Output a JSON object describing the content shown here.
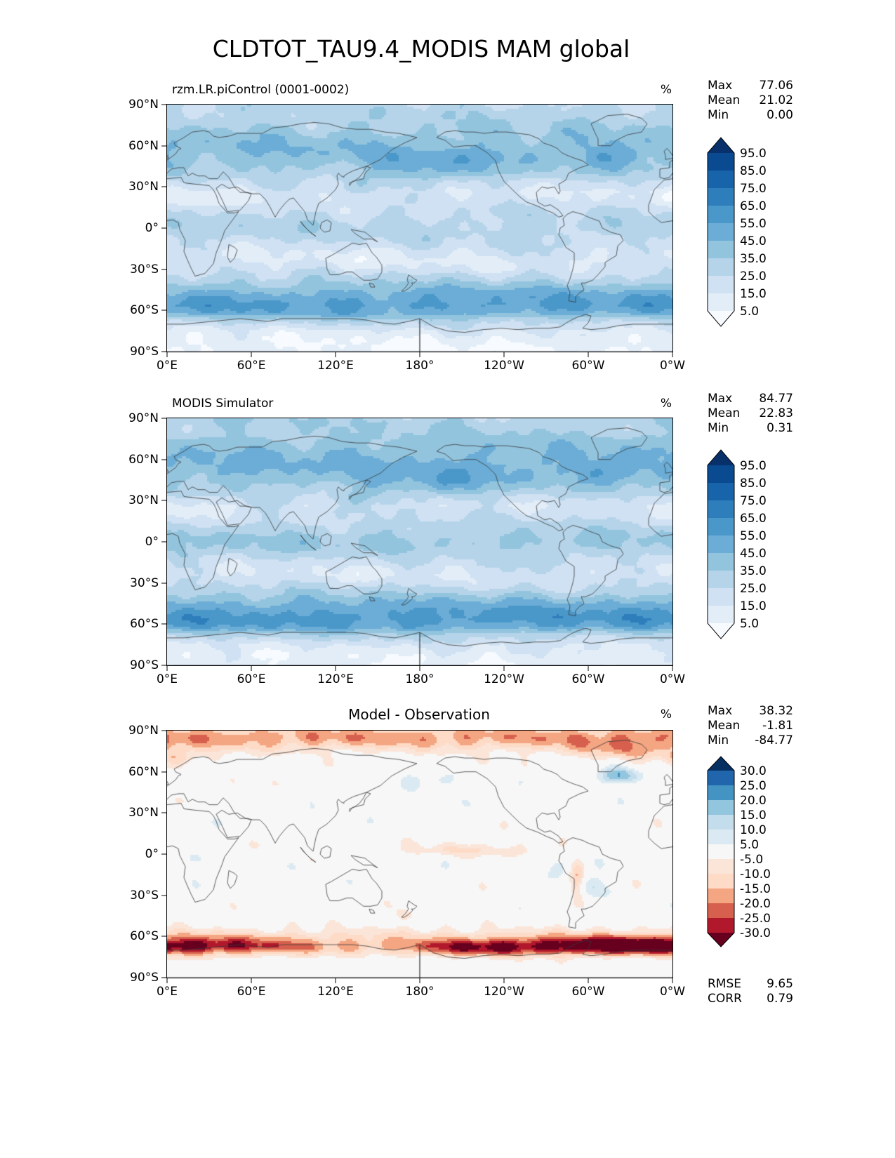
{
  "title": "CLDTOT_TAU9.4_MODIS MAM global",
  "axis": {
    "x_labels": [
      "0°E",
      "60°E",
      "120°E",
      "180°",
      "120°W",
      "60°W",
      "0°W"
    ],
    "y_labels": [
      "90°N",
      "60°N",
      "30°N",
      "0°",
      "30°S",
      "60°S",
      "90°S"
    ]
  },
  "panels": [
    {
      "title": "rzm.LR.piControl (0001-0002)",
      "unit": "%",
      "colorbar": "blues",
      "field": "control",
      "stats": [
        {
          "label": "Max",
          "value": "77.06"
        },
        {
          "label": "Mean",
          "value": "21.02"
        },
        {
          "label": "Min",
          "value": "0.00"
        }
      ]
    },
    {
      "title": "MODIS Simulator",
      "unit": "%",
      "colorbar": "blues",
      "field": "simulator",
      "stats": [
        {
          "label": "Max",
          "value": "84.77"
        },
        {
          "label": "Mean",
          "value": "22.83"
        },
        {
          "label": "Min",
          "value": "0.31"
        }
      ]
    },
    {
      "title": "Model - Observation",
      "unit": "%",
      "colorbar": "rdbu",
      "field": "difference",
      "stats": [
        {
          "label": "Max",
          "value": "38.32"
        },
        {
          "label": "Mean",
          "value": "-1.81"
        },
        {
          "label": "Min",
          "value": "-84.77"
        }
      ],
      "extra_stats": [
        {
          "label": "RMSE",
          "value": "9.65"
        },
        {
          "label": "CORR",
          "value": "0.79"
        }
      ]
    }
  ],
  "colorbars": {
    "blues": {
      "labels": [
        "95.0",
        "85.0",
        "75.0",
        "65.0",
        "55.0",
        "45.0",
        "35.0",
        "25.0",
        "15.0",
        "5.0"
      ],
      "levels": [
        5,
        15,
        25,
        35,
        45,
        55,
        65,
        75,
        85,
        95
      ],
      "colors_top_to_bottom": [
        "#08306b",
        "#0a4a90",
        "#1864aa",
        "#2e7ebc",
        "#4a97c9",
        "#6badd6",
        "#93c4de",
        "#b5d4e9",
        "#cfe1f2",
        "#e2edf8",
        "#f7fbff"
      ],
      "seg_h": 25,
      "tip_h": 22
    },
    "rdbu": {
      "labels": [
        "30.0",
        "25.0",
        "20.0",
        "15.0",
        "10.0",
        "5.0",
        "-5.0",
        "-10.0",
        "-15.0",
        "-20.0",
        "-25.0",
        "-30.0"
      ],
      "levels": [
        -30,
        -25,
        -20,
        -15,
        -10,
        -5,
        5,
        10,
        15,
        20,
        25,
        30
      ],
      "colors_top_to_bottom": [
        "#053061",
        "#2166ac",
        "#4393c3",
        "#92c5de",
        "#c4ddec",
        "#dbeaf2",
        "#f7f7f7",
        "#fbe5d8",
        "#fddbc7",
        "#f4a582",
        "#d6604d",
        "#b2182b",
        "#67001f"
      ],
      "seg_h": 21,
      "tip_h": 20
    }
  },
  "chart_data": [
    {
      "type": "heatmap",
      "title": "rzm.LR.piControl (0001-0002)",
      "variable": "CLDTOT_TAU9.4_MODIS",
      "season": "MAM",
      "region": "global",
      "units": "%",
      "colormap": "Blues",
      "levels": [
        5,
        15,
        25,
        35,
        45,
        55,
        65,
        75,
        85,
        95
      ],
      "stats": {
        "max": 77.06,
        "mean": 21.02,
        "min": 0.0
      },
      "x_ticks": [
        "0°E",
        "60°E",
        "120°E",
        "180°",
        "120°W",
        "60°W",
        "0°W"
      ],
      "y_ticks": [
        "90°N",
        "60°N",
        "30°N",
        "0°",
        "30°S",
        "60°S",
        "90°S"
      ],
      "lon_range": [
        0,
        360
      ],
      "lat_range": [
        -90,
        90
      ]
    },
    {
      "type": "heatmap",
      "title": "MODIS Simulator",
      "variable": "CLDTOT_TAU9.4_MODIS",
      "season": "MAM",
      "region": "global",
      "units": "%",
      "colormap": "Blues",
      "levels": [
        5,
        15,
        25,
        35,
        45,
        55,
        65,
        75,
        85,
        95
      ],
      "stats": {
        "max": 84.77,
        "mean": 22.83,
        "min": 0.31
      },
      "x_ticks": [
        "0°E",
        "60°E",
        "120°E",
        "180°",
        "120°W",
        "60°W",
        "0°W"
      ],
      "y_ticks": [
        "90°N",
        "60°N",
        "30°N",
        "0°",
        "30°S",
        "60°S",
        "90°S"
      ],
      "lon_range": [
        0,
        360
      ],
      "lat_range": [
        -90,
        90
      ]
    },
    {
      "type": "heatmap",
      "title": "Model - Observation",
      "variable": "CLDTOT_TAU9.4_MODIS difference",
      "season": "MAM",
      "region": "global",
      "units": "%",
      "colormap": "RdBu",
      "levels": [
        -30,
        -25,
        -20,
        -15,
        -10,
        -5,
        5,
        10,
        15,
        20,
        25,
        30
      ],
      "stats": {
        "max": 38.32,
        "mean": -1.81,
        "min": -84.77,
        "rmse": 9.65,
        "corr": 0.79
      },
      "x_ticks": [
        "0°E",
        "60°E",
        "120°E",
        "180°",
        "120°W",
        "60°W",
        "0°W"
      ],
      "y_ticks": [
        "90°N",
        "60°N",
        "30°N",
        "0°",
        "30°S",
        "60°S",
        "90°S"
      ],
      "lon_range": [
        0,
        360
      ],
      "lat_range": [
        -90,
        90
      ]
    }
  ]
}
